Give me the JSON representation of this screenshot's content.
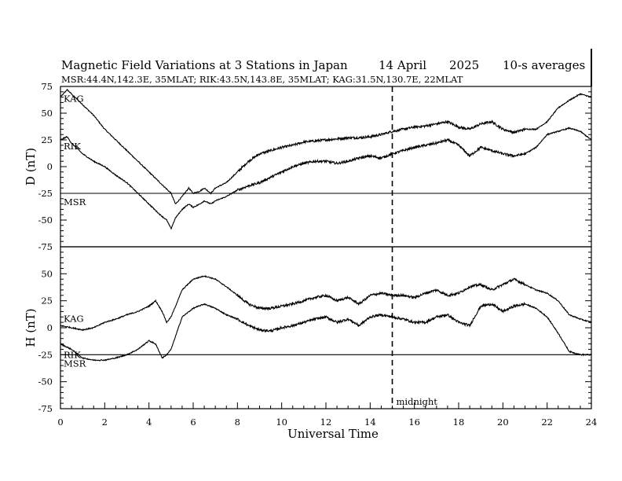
{
  "chart_data": {
    "type": "line",
    "title": "Magnetic Field Variations at 3 Stations in Japan",
    "date": "14 April",
    "year": "2025",
    "averaging": "10-s averages",
    "stations_info": "MSR:44.4N,142.3E, 35MLAT;  RIK:43.5N,143.8E, 35MLAT;  KAG:31.5N,130.7E, 22MLAT",
    "xlabel": "Universal Time",
    "xlim": [
      0,
      24
    ],
    "x_ticks": [
      "0",
      "2",
      "4",
      "6",
      "8",
      "10",
      "12",
      "14",
      "16",
      "18",
      "20",
      "22",
      "24"
    ],
    "midnight_ut": 15,
    "midnight_label": "midnight",
    "panels": [
      {
        "ylabel": "D (nT)",
        "ylim": [
          -75,
          75
        ],
        "y_ticks": [
          "75",
          "50",
          "25",
          "0",
          "-25",
          "-50",
          "-75"
        ],
        "series": [
          {
            "name": "KAG",
            "x": [
              0,
              0.3,
              0.5,
              1,
              1.5,
              2,
              2.5,
              3,
              3.5,
              4,
              4.5,
              5,
              5.2,
              5.5,
              5.8,
              6,
              6.3,
              6.5,
              6.8,
              7,
              7.5,
              8,
              8.5,
              9,
              9.5,
              10,
              10.5,
              11,
              11.5,
              12,
              12.5,
              13,
              13.5,
              14,
              14.5,
              15,
              15.5,
              16,
              16.5,
              17,
              17.5,
              18,
              18.5,
              19,
              19.5,
              20,
              20.5,
              21,
              21.5,
              22,
              22.5,
              23,
              23.5,
              24
            ],
            "y": [
              65,
              72,
              68,
              58,
              48,
              35,
              25,
              15,
              5,
              -5,
              -15,
              -25,
              -35,
              -28,
              -20,
              -25,
              -23,
              -20,
              -25,
              -20,
              -15,
              -5,
              5,
              12,
              15,
              18,
              20,
              23,
              24,
              25,
              26,
              27,
              27,
              28,
              30,
              33,
              35,
              37,
              38,
              40,
              42,
              37,
              35,
              40,
              42,
              35,
              32,
              35,
              35,
              42,
              55,
              62,
              68,
              65
            ]
          },
          {
            "name": "RIK",
            "x": [
              0,
              0.3,
              0.5,
              1,
              1.5,
              2,
              2.5,
              3,
              3.5,
              4,
              4.5,
              4.8,
              5,
              5.2,
              5.5,
              5.8,
              6,
              6.3,
              6.5,
              6.8,
              7,
              7.5,
              8,
              8.5,
              9,
              9.5,
              10,
              10.5,
              11,
              11.5,
              12,
              12.5,
              13,
              13.5,
              14,
              14.5,
              15,
              15.5,
              16,
              16.5,
              17,
              17.5,
              18,
              18.5,
              19,
              19.5,
              20,
              20.5,
              21,
              21.5,
              22,
              22.5,
              23,
              23.5,
              24
            ],
            "y": [
              25,
              28,
              22,
              12,
              5,
              0,
              -8,
              -15,
              -25,
              -35,
              -45,
              -50,
              -58,
              -48,
              -40,
              -35,
              -38,
              -35,
              -32,
              -35,
              -32,
              -28,
              -22,
              -18,
              -15,
              -10,
              -5,
              0,
              3,
              5,
              5,
              3,
              5,
              8,
              10,
              8,
              12,
              15,
              18,
              20,
              22,
              25,
              20,
              10,
              18,
              15,
              12,
              10,
              12,
              18,
              30,
              33,
              36,
              33,
              25
            ]
          },
          {
            "name": "MSR",
            "x": [
              0,
              24
            ],
            "y": [
              -25,
              -25
            ]
          }
        ]
      },
      {
        "ylabel": "H (nT)",
        "ylim": [
          -75,
          75
        ],
        "y_ticks": [
          "75",
          "50",
          "25",
          "0",
          "-25",
          "-50",
          "-75"
        ],
        "series": [
          {
            "name": "KAG",
            "x": [
              0,
              0.5,
              1,
              1.5,
              2,
              2.5,
              3,
              3.5,
              4,
              4.3,
              4.6,
              4.8,
              5,
              5.5,
              6,
              6.5,
              7,
              7.5,
              8,
              8.5,
              9,
              9.5,
              10,
              10.5,
              11,
              11.5,
              12,
              12.5,
              13,
              13.5,
              14,
              14.5,
              15,
              15.5,
              16,
              16.5,
              17,
              17.5,
              18,
              18.5,
              19,
              19.5,
              20,
              20.5,
              21,
              21.5,
              22,
              22.5,
              23,
              23.5,
              24
            ],
            "y": [
              2,
              0,
              -2,
              0,
              5,
              8,
              12,
              15,
              20,
              25,
              15,
              5,
              10,
              35,
              45,
              48,
              45,
              38,
              30,
              22,
              18,
              18,
              20,
              22,
              25,
              28,
              30,
              25,
              28,
              22,
              30,
              32,
              30,
              30,
              28,
              32,
              35,
              30,
              32,
              38,
              40,
              35,
              40,
              45,
              40,
              35,
              32,
              25,
              12,
              8,
              5
            ]
          },
          {
            "name": "RIK",
            "x": [
              0,
              0.5,
              1,
              1.5,
              2,
              2.5,
              3,
              3.5,
              4,
              4.3,
              4.6,
              4.8,
              5,
              5.5,
              6,
              6.5,
              7,
              7.5,
              8,
              8.5,
              9,
              9.5,
              10,
              10.5,
              11,
              11.5,
              12,
              12.5,
              13,
              13.5,
              14,
              14.5,
              15,
              15.5,
              16,
              16.5,
              17,
              17.5,
              18,
              18.5,
              19,
              19.5,
              20,
              20.5,
              21,
              21.5,
              22,
              22.5,
              23,
              23.5,
              24
            ],
            "y": [
              -15,
              -20,
              -28,
              -30,
              -30,
              -28,
              -25,
              -20,
              -12,
              -15,
              -28,
              -25,
              -20,
              10,
              18,
              22,
              18,
              12,
              8,
              2,
              -2,
              -3,
              0,
              2,
              5,
              8,
              10,
              5,
              8,
              2,
              10,
              12,
              10,
              8,
              5,
              5,
              10,
              12,
              5,
              2,
              20,
              22,
              15,
              20,
              22,
              18,
              10,
              -5,
              -22,
              -25,
              -25
            ]
          },
          {
            "name": "MSR",
            "x": [
              0,
              24
            ],
            "y": [
              -25,
              -25
            ]
          }
        ]
      }
    ]
  }
}
